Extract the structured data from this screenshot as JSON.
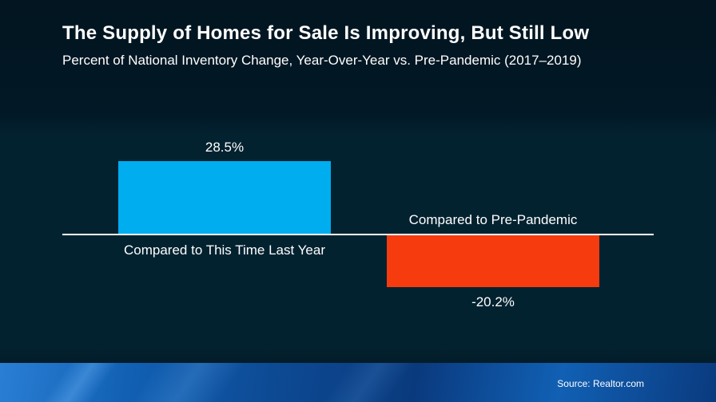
{
  "header": {
    "title": "The Supply of Homes for Sale Is Improving, But Still Low",
    "subtitle": "Percent of National Inventory Change, Year-Over-Year vs. Pre-Pandemic (2017–2019)"
  },
  "footer": {
    "source": "Source: Realtor.com"
  },
  "colors": {
    "background": "#032230",
    "bar_positive": "#00ADEE",
    "bar_negative": "#F63B0F",
    "baseline": "#FFFFFF",
    "footer_blue": "#0D4A94"
  },
  "chart_data": {
    "type": "bar",
    "title": "The Supply of Homes for Sale Is Improving, But Still Low",
    "subtitle": "Percent of National Inventory Change, Year-Over-Year vs. Pre-Pandemic (2017–2019)",
    "categories": [
      "Compared to This Time Last Year",
      "Compared to Pre-Pandemic"
    ],
    "values": [
      28.5,
      -20.2
    ],
    "value_labels": [
      "28.5%",
      "-20.2%"
    ],
    "bar_colors": [
      "#00ADEE",
      "#F63B0F"
    ],
    "xlabel": "",
    "ylabel": "",
    "baseline": 0,
    "ylim": [
      -25,
      30
    ],
    "grid": false,
    "legend": false,
    "source": "Source: Realtor.com"
  }
}
